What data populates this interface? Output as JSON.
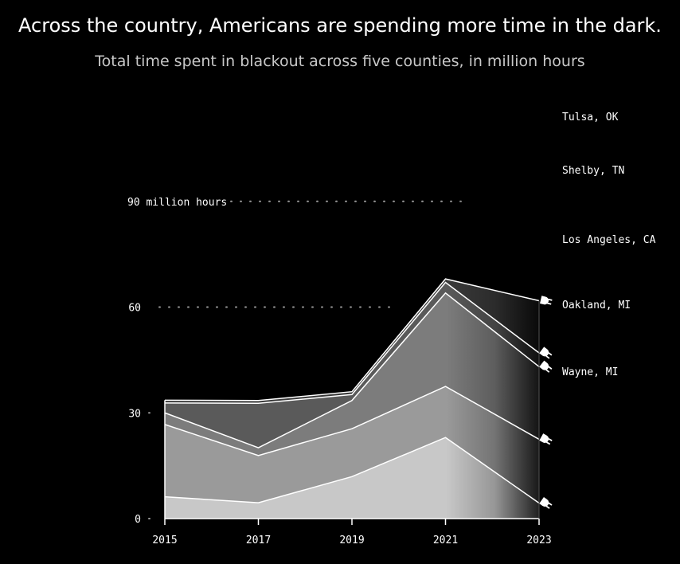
{
  "title": "Across the country, Americans are spending more time in the dark.",
  "subtitle": "Total time spent in blackout across five counties, in million hours",
  "colors": {
    "background": "#000000",
    "line": "#ffffff",
    "bands": [
      "#c8c8c8",
      "#9a9a9a",
      "#7c7c7c",
      "#5a5a5a",
      "#3a3a3a"
    ]
  },
  "chart_data": {
    "type": "area",
    "stacked": true,
    "x": [
      2015,
      2017,
      2019,
      2021,
      2023
    ],
    "ylim": [
      0,
      120
    ],
    "yticks": [
      0,
      30,
      60,
      90
    ],
    "ytick_labels": [
      "0",
      "30",
      "60",
      "90 million hours"
    ],
    "grid": "dotted horizontal guides at 60 and 90",
    "series": [
      {
        "name": "Wayne, MI",
        "values": [
          6.2,
          4.5,
          11.9,
          23.0,
          4.4
        ]
      },
      {
        "name": "Oakland, MI",
        "values": [
          20.5,
          13.4,
          13.6,
          14.5,
          18.1
        ]
      },
      {
        "name": "Los Angeles, CA",
        "values": [
          3.3,
          2.2,
          8.0,
          26.5,
          20.6
        ]
      },
      {
        "name": "Shelby, TN",
        "values": [
          2.8,
          12.6,
          1.7,
          3.0,
          3.9
        ]
      },
      {
        "name": "Tulsa, OK",
        "values": [
          0.8,
          0.8,
          0.8,
          1.0,
          14.8
        ]
      }
    ],
    "legend": "labels at line ends on the right, with plug icons"
  }
}
